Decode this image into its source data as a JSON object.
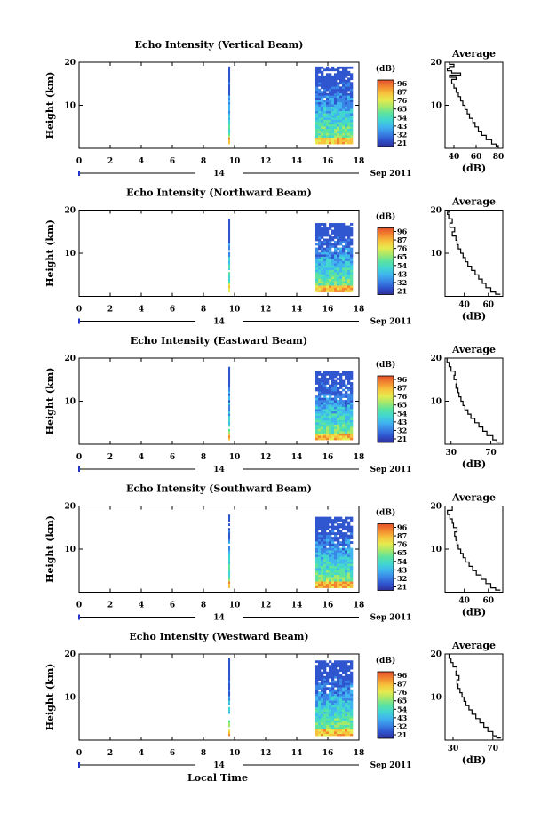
{
  "page": {
    "bottom_label": "Local Time",
    "colors": {
      "colorbar": [
        "#2f2f9a",
        "#2f55cf",
        "#3a86e6",
        "#3fb6ee",
        "#42d6d0",
        "#5be39f",
        "#a6e86a",
        "#e6ea4e",
        "#f7c23c",
        "#f2872f",
        "#e5502c"
      ]
    }
  },
  "chart_data": [
    {
      "type": "heatmap",
      "title": "Echo Intensity (Vertical Beam)",
      "ylabel": "Height (km)",
      "yticks": [
        "20",
        "10"
      ],
      "ylim": [
        0,
        20
      ],
      "xlim": [
        0,
        18
      ],
      "xticks": [
        "0",
        "2",
        "4",
        "6",
        "8",
        "10",
        "12",
        "14",
        "16",
        "18"
      ],
      "date_day": "14",
      "date_month": "Sep 2011",
      "colorbar_unit": "(dB)",
      "colorbar_ticks": [
        "96",
        "87",
        "76",
        "65",
        "54",
        "43",
        "32",
        "21"
      ],
      "data_blocks": [
        {
          "x_start": 9.6,
          "x_end": 9.7,
          "y_bottom": 1,
          "y_top": 19
        },
        {
          "x_start": 15.2,
          "x_end": 17.6,
          "y_bottom": 1,
          "y_top": 19
        }
      ],
      "average_profile": {
        "title": "Average",
        "xlabel": "(dB)",
        "xticks": [
          "40",
          "60",
          "80"
        ],
        "xlim": [
          32,
          84
        ],
        "yticks": [
          "20",
          "10"
        ],
        "ylim": [
          0,
          20
        ],
        "heights": [
          0.5,
          1,
          2,
          3,
          4,
          5,
          6,
          7,
          8,
          9,
          10,
          11,
          12,
          13,
          14,
          15,
          16,
          16.5,
          17,
          17.5,
          18,
          18.5,
          19,
          19.5,
          20
        ],
        "values": [
          80,
          78,
          74,
          69,
          65,
          62,
          59,
          57,
          54,
          52,
          50,
          48,
          46,
          44,
          42,
          40,
          38,
          42,
          36,
          46,
          38,
          34,
          36,
          40,
          36
        ]
      }
    },
    {
      "type": "heatmap",
      "title": "Echo Intensity (Northward Beam)",
      "ylabel": "Height (km)",
      "yticks": [
        "20",
        "10"
      ],
      "ylim": [
        0,
        20
      ],
      "xlim": [
        0,
        18
      ],
      "xticks": [
        "0",
        "2",
        "4",
        "6",
        "8",
        "10",
        "12",
        "14",
        "16",
        "18"
      ],
      "date_day": "14",
      "date_month": "Sep 2011",
      "colorbar_unit": "(dB)",
      "colorbar_ticks": [
        "96",
        "87",
        "76",
        "65",
        "54",
        "43",
        "32",
        "21"
      ],
      "data_blocks": [
        {
          "x_start": 9.6,
          "x_end": 9.7,
          "y_bottom": 1,
          "y_top": 18
        },
        {
          "x_start": 15.2,
          "x_end": 17.6,
          "y_bottom": 1,
          "y_top": 17
        }
      ],
      "average_profile": {
        "title": "Average",
        "xlabel": "(dB)",
        "xticks": [
          "40",
          "60"
        ],
        "xlim": [
          24,
          72
        ],
        "yticks": [
          "20",
          "10"
        ],
        "ylim": [
          0,
          20
        ],
        "heights": [
          0.5,
          1,
          2,
          3,
          4,
          5,
          6,
          7,
          8,
          9,
          10,
          11,
          12,
          13,
          14,
          15,
          16,
          17,
          18,
          19,
          19.5,
          20
        ],
        "values": [
          70,
          66,
          62,
          58,
          55,
          52,
          49,
          46,
          43,
          41,
          39,
          37,
          35,
          34,
          33,
          30,
          32,
          28,
          30,
          27,
          26,
          28
        ]
      }
    },
    {
      "type": "heatmap",
      "title": "Echo Intensity (Eastward Beam)",
      "ylabel": "Height (km)",
      "yticks": [
        "20",
        "10"
      ],
      "ylim": [
        0,
        20
      ],
      "xlim": [
        0,
        18
      ],
      "xticks": [
        "0",
        "2",
        "4",
        "6",
        "8",
        "10",
        "12",
        "14",
        "16",
        "18"
      ],
      "date_day": "14",
      "date_month": "Sep 2011",
      "colorbar_unit": "(dB)",
      "colorbar_ticks": [
        "96",
        "87",
        "76",
        "65",
        "54",
        "43",
        "32",
        "21"
      ],
      "data_blocks": [
        {
          "x_start": 9.6,
          "x_end": 9.7,
          "y_bottom": 1,
          "y_top": 18
        },
        {
          "x_start": 15.2,
          "x_end": 17.6,
          "y_bottom": 1,
          "y_top": 17
        }
      ],
      "average_profile": {
        "title": "Average",
        "xlabel": "(dB)",
        "xticks": [
          "30",
          "70"
        ],
        "xlim": [
          24,
          82
        ],
        "yticks": [
          "20",
          "10"
        ],
        "ylim": [
          0,
          20
        ],
        "heights": [
          0.5,
          1,
          2,
          3,
          4,
          5,
          6,
          7,
          8,
          9,
          10,
          11,
          12,
          13,
          14,
          15,
          16,
          17,
          18,
          19,
          20
        ],
        "values": [
          80,
          76,
          72,
          66,
          62,
          58,
          54,
          50,
          47,
          44,
          42,
          40,
          38,
          37,
          35,
          36,
          33,
          34,
          30,
          28,
          26
        ]
      }
    },
    {
      "type": "heatmap",
      "title": "Echo Intensity (Southward Beam)",
      "ylabel": "Height (km)",
      "yticks": [
        "20",
        "10"
      ],
      "ylim": [
        0,
        20
      ],
      "xlim": [
        0,
        18
      ],
      "xticks": [
        "0",
        "2",
        "4",
        "6",
        "8",
        "10",
        "12",
        "14",
        "16",
        "18"
      ],
      "date_day": "14",
      "date_month": "Sep 2011",
      "colorbar_unit": "(dB)",
      "colorbar_ticks": [
        "96",
        "87",
        "76",
        "65",
        "54",
        "43",
        "32",
        "21"
      ],
      "data_blocks": [
        {
          "x_start": 9.6,
          "x_end": 9.7,
          "y_bottom": 1,
          "y_top": 18
        },
        {
          "x_start": 15.2,
          "x_end": 17.6,
          "y_bottom": 1,
          "y_top": 17.5
        }
      ],
      "average_profile": {
        "title": "Average",
        "xlabel": "(dB)",
        "xticks": [
          "40",
          "60"
        ],
        "xlim": [
          24,
          72
        ],
        "yticks": [
          "20",
          "10"
        ],
        "ylim": [
          0,
          20
        ],
        "heights": [
          0.5,
          1,
          2,
          3,
          4,
          5,
          6,
          7,
          8,
          9,
          10,
          11,
          12,
          13,
          14,
          15,
          16,
          17,
          18,
          19,
          20
        ],
        "values": [
          70,
          66,
          62,
          58,
          54,
          50,
          47,
          44,
          41,
          39,
          37,
          35,
          34,
          33,
          32,
          34,
          31,
          30,
          28,
          26,
          30
        ]
      }
    },
    {
      "type": "heatmap",
      "title": "Echo Intensity (Westward Beam)",
      "ylabel": "Height (km)",
      "yticks": [
        "20",
        "10"
      ],
      "ylim": [
        0,
        20
      ],
      "xlim": [
        0,
        18
      ],
      "xticks": [
        "0",
        "2",
        "4",
        "6",
        "8",
        "10",
        "12",
        "14",
        "16",
        "18"
      ],
      "date_day": "14",
      "date_month": "Sep 2011",
      "colorbar_unit": "(dB)",
      "colorbar_ticks": [
        "96",
        "87",
        "76",
        "65",
        "54",
        "43",
        "32",
        "21"
      ],
      "data_blocks": [
        {
          "x_start": 9.6,
          "x_end": 9.7,
          "y_bottom": 1,
          "y_top": 19
        },
        {
          "x_start": 15.2,
          "x_end": 17.6,
          "y_bottom": 1,
          "y_top": 18.5
        }
      ],
      "average_profile": {
        "title": "Average",
        "xlabel": "(dB)",
        "xticks": [
          "30",
          "70"
        ],
        "xlim": [
          22,
          80
        ],
        "yticks": [
          "20",
          "10"
        ],
        "ylim": [
          0,
          20
        ],
        "heights": [
          0.5,
          1,
          2,
          3,
          4,
          5,
          6,
          7,
          8,
          9,
          10,
          11,
          12,
          13,
          14,
          15,
          16,
          17,
          18,
          19,
          20
        ],
        "values": [
          78,
          74,
          70,
          65,
          61,
          57,
          53,
          49,
          46,
          43,
          41,
          39,
          37,
          35,
          34,
          36,
          33,
          34,
          30,
          28,
          26
        ]
      }
    }
  ]
}
